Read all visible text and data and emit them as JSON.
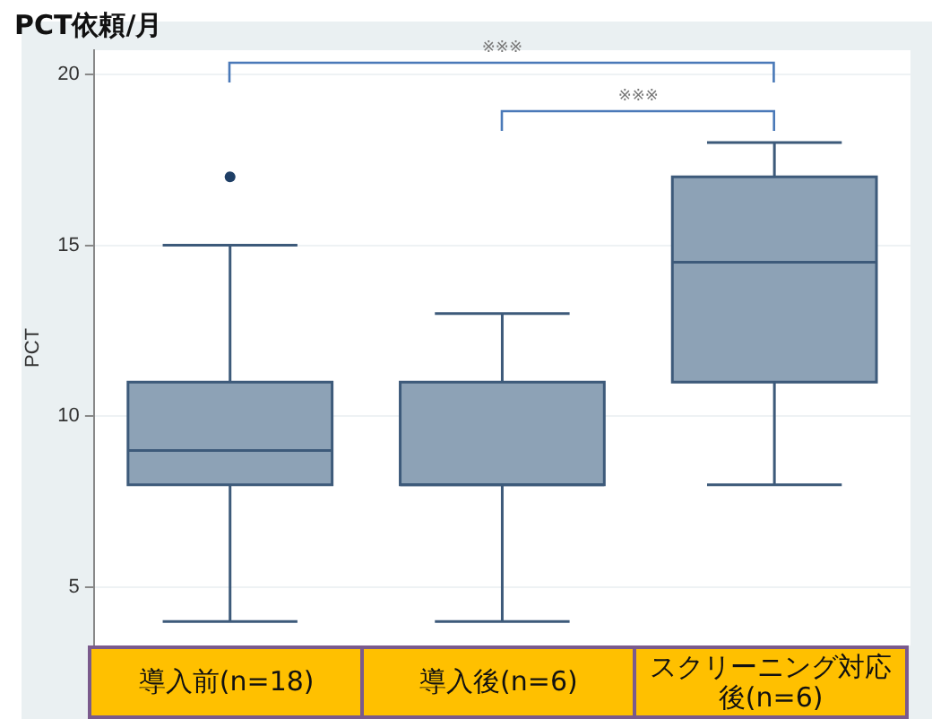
{
  "chart_data": {
    "type": "box",
    "title": "PCT依頼/月",
    "ylabel": "PCT",
    "categories": [
      "導入前(n=18)",
      "導入後(n=6)",
      "スクリーニング対応後(n=6)"
    ],
    "series": [
      {
        "color": "#8da2b6",
        "boxes": [
          {
            "low": 4,
            "q1": 8,
            "median": 9,
            "q3": 11,
            "high": 15,
            "outliers": [
              17
            ]
          },
          {
            "low": 4,
            "q1": 8,
            "median": 8,
            "q3": 11,
            "high": 13
          },
          {
            "low": 8,
            "q1": 11,
            "median": 14.5,
            "q3": 17,
            "high": 18
          }
        ]
      }
    ],
    "ylim": [
      3.3,
      20.7
    ],
    "yticks": [
      5,
      10,
      15,
      20
    ],
    "grid": "y",
    "annotations": [
      "※※※",
      "※※※"
    ]
  }
}
